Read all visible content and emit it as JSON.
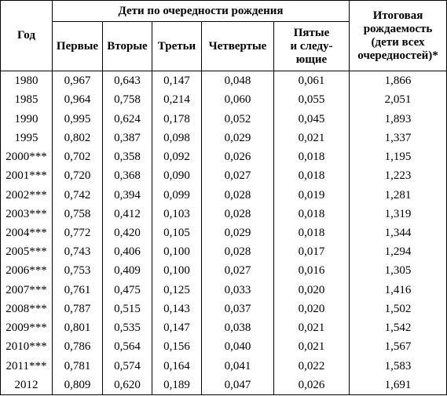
{
  "table": {
    "header": {
      "year": "Год",
      "group": "Дети по очередности рождения",
      "columns": [
        [
          "Первые"
        ],
        [
          "Вторые"
        ],
        [
          "Третьи"
        ],
        [
          "Четвертые"
        ],
        [
          "Пятые",
          "и следу-",
          "ющие"
        ]
      ],
      "total": [
        "Итоговая",
        "рождаемость",
        "(дети всех",
        "очередностей)*"
      ]
    },
    "rows": [
      [
        "1980",
        "0,967",
        "0,643",
        "0,147",
        "0,048",
        "0,061",
        "1,866"
      ],
      [
        "1985",
        "0,964",
        "0,758",
        "0,214",
        "0,060",
        "0,055",
        "2,051"
      ],
      [
        "1990",
        "0,995",
        "0,624",
        "0,178",
        "0,052",
        "0,045",
        "1,893"
      ],
      [
        "1995",
        "0,802",
        "0,387",
        "0,098",
        "0,029",
        "0,021",
        "1,337"
      ],
      [
        "2000***",
        "0,702",
        "0,358",
        "0,092",
        "0,026",
        "0,018",
        "1,195"
      ],
      [
        "2001***",
        "0,720",
        "0,368",
        "0,090",
        "0,027",
        "0,018",
        "1,223"
      ],
      [
        "2002***",
        "0,742",
        "0,394",
        "0,099",
        "0,028",
        "0,019",
        "1,281"
      ],
      [
        "2003***",
        "0,758",
        "0,412",
        "0,103",
        "0,028",
        "0,018",
        "1,319"
      ],
      [
        "2004***",
        "0,772",
        "0,420",
        "0,105",
        "0,029",
        "0,018",
        "1,344"
      ],
      [
        "2005***",
        "0,743",
        "0,406",
        "0,100",
        "0,028",
        "0,017",
        "1,294"
      ],
      [
        "2006***",
        "0,753",
        "0,409",
        "0,100",
        "0,027",
        "0,016",
        "1,305"
      ],
      [
        "2007***",
        "0,761",
        "0,475",
        "0,125",
        "0,033",
        "0,020",
        "1,416"
      ],
      [
        "2008***",
        "0,787",
        "0,515",
        "0,143",
        "0,037",
        "0,020",
        "1,502"
      ],
      [
        "2009***",
        "0,801",
        "0,535",
        "0,147",
        "0,038",
        "0,021",
        "1,542"
      ],
      [
        "2010***",
        "0,786",
        "0,564",
        "0,156",
        "0,040",
        "0,021",
        "1,567"
      ],
      [
        "2011***",
        "0,781",
        "0,574",
        "0,164",
        "0,041",
        "0,022",
        "1,583"
      ],
      [
        "2012",
        "0,809",
        "0,620",
        "0,189",
        "0,047",
        "0,026",
        "1,691"
      ]
    ]
  }
}
